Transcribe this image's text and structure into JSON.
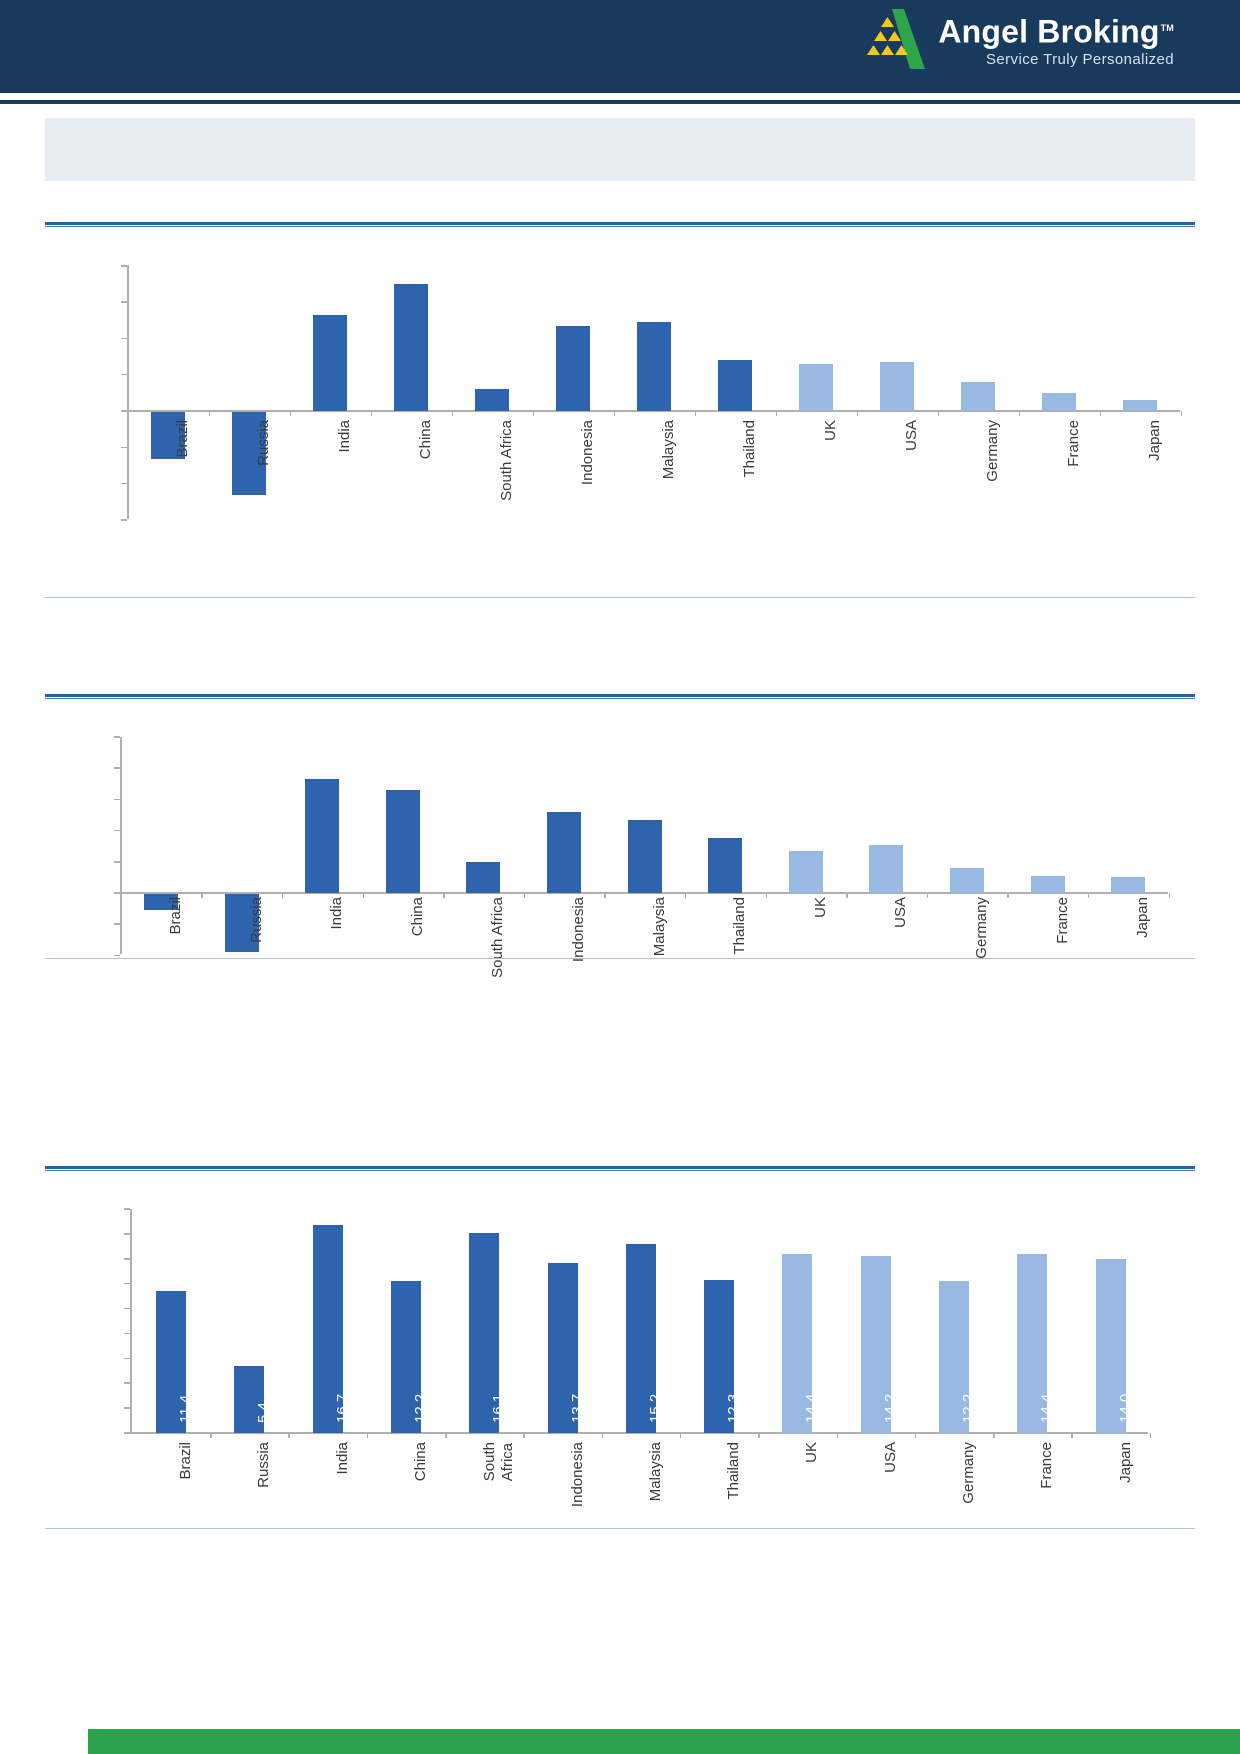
{
  "header": {
    "brand": "Angel Broking",
    "trademark": "TM",
    "tagline": "Service Truly Personalized",
    "background_color": "#183a5c",
    "tagline_color": "#d3e1ee",
    "logo_green": "#2ea44b",
    "logo_yellow": "#f8c81c"
  },
  "layout_colors": {
    "title_band": "#e8edf3",
    "rule_blue": "#2366ad",
    "divider_blue": "#a9c4d6",
    "footer_green": "#2ca24c",
    "axis_gray": "#b0b0b0",
    "category_label_text": "#3b3b3b",
    "value_label_text": "#ffffff"
  },
  "chart_data": [
    {
      "type": "bar",
      "title": "",
      "categories": [
        "Brazil",
        "Russia",
        "India",
        "China",
        "South Africa",
        "Indonesia",
        "Malaysia",
        "Thailand",
        "UK",
        "USA",
        "Germany",
        "France",
        "Japan"
      ],
      "values": [
        -2.6,
        -4.6,
        5.3,
        7.0,
        1.2,
        4.7,
        4.9,
        2.8,
        2.6,
        2.7,
        1.6,
        1.0,
        0.6
      ],
      "ylim": [
        -6,
        8
      ],
      "tick_step": 2,
      "grid": false,
      "legend": "none",
      "axis_tick_labels_visible": false,
      "bar_color_dark": "#2e64ae",
      "bar_color_light": "#98b9e2",
      "dark_count": 8,
      "data_labels": []
    },
    {
      "type": "bar",
      "title": "",
      "categories": [
        "Brazil",
        "Russia",
        "India",
        "China",
        "South Africa",
        "Indonesia",
        "Malaysia",
        "Thailand",
        "UK",
        "USA",
        "Germany",
        "France",
        "Japan"
      ],
      "values": [
        -1.0,
        -3.7,
        7.3,
        6.6,
        2.0,
        5.2,
        4.7,
        3.5,
        2.7,
        3.1,
        1.6,
        1.1,
        1.0
      ],
      "ylim": [
        -4,
        10
      ],
      "tick_step": 2,
      "grid": false,
      "legend": "none",
      "axis_tick_labels_visible": false,
      "bar_color_dark": "#2e64ae",
      "bar_color_light": "#98b9e2",
      "dark_count": 8,
      "data_labels": []
    },
    {
      "type": "bar",
      "title": "",
      "categories": [
        "Brazil",
        "Russia",
        "India",
        "China",
        "South Africa",
        "Indonesia",
        "Malaysia",
        "Thailand",
        "UK",
        "USA",
        "Germany",
        "France",
        "Japan"
      ],
      "values": [
        11.4,
        5.4,
        16.7,
        12.2,
        16.1,
        13.7,
        15.2,
        12.3,
        14.4,
        14.2,
        12.2,
        14.4,
        14.0
      ],
      "ylim": [
        0,
        18
      ],
      "tick_step": 2,
      "grid": false,
      "legend": "none",
      "axis_tick_labels_visible": false,
      "bar_color_dark": "#2e64ae",
      "bar_color_light": "#98b9e2",
      "dark_count": 8,
      "data_labels": [
        "11.4",
        "5.4",
        "16.7",
        "12.2",
        "16.1",
        "13.7",
        "15.2",
        "12.3",
        "14.4",
        "14.2",
        "12.2",
        "14.4",
        "14.0"
      ]
    }
  ]
}
